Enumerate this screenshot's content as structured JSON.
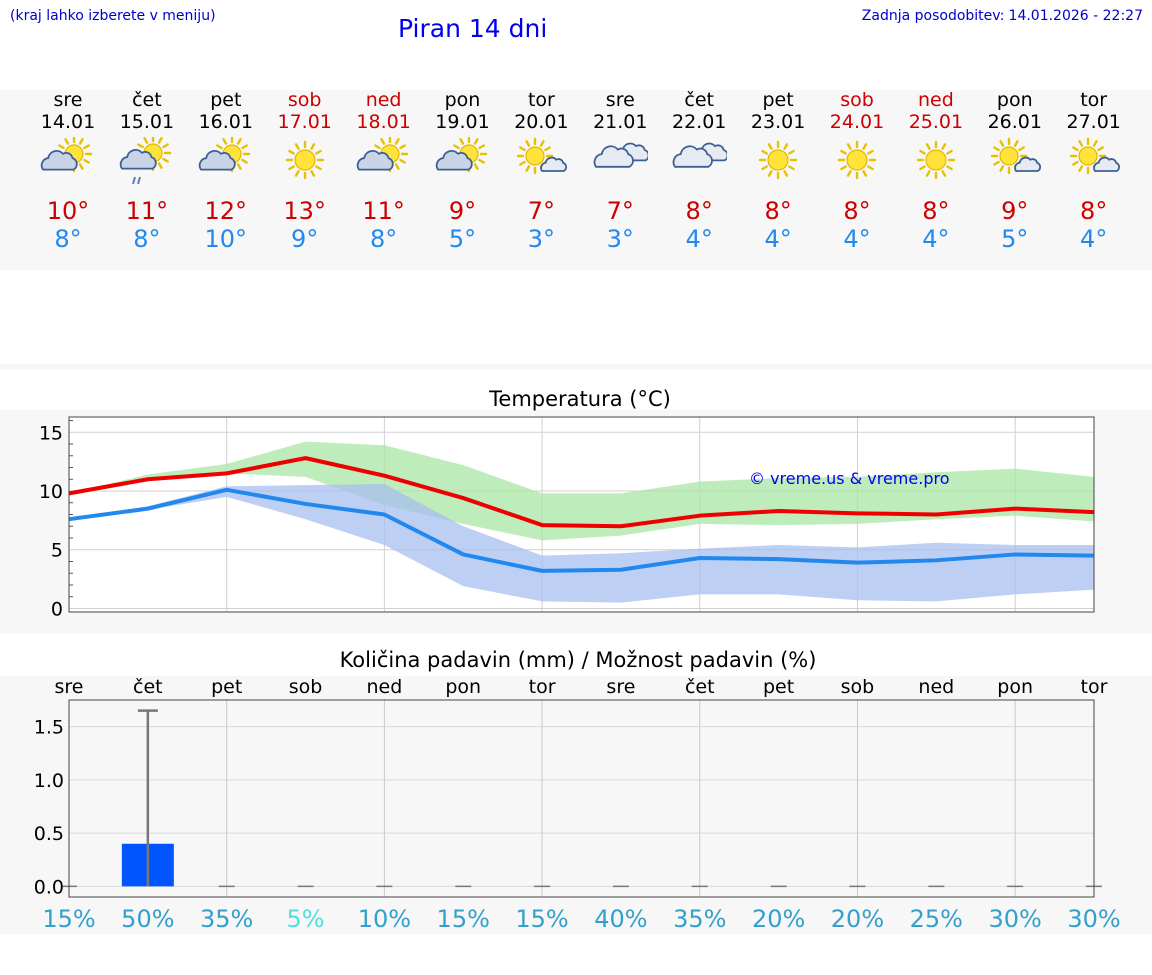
{
  "header": {
    "hint": "(kraj lahko izberete v meniju)",
    "title": "Piran 14 dni",
    "updated_label": "Zadnja posodobitev:",
    "updated_value": "14.01.2026 - 22:27"
  },
  "colors": {
    "weekend": "#cc0000",
    "tmax": "#cc0000",
    "tmin": "#2288ee",
    "max_band": "#a8e6a3",
    "min_band": "#a8bff0",
    "bar": "#0055ff",
    "prob": "#33a0cc",
    "prob_low": "#55dddd"
  },
  "forecast": {
    "days": [
      {
        "name": "sre",
        "date": "14.01",
        "weekend": false,
        "icon": "sun-cloud-icon",
        "tmax": "10°",
        "tmin": "8°"
      },
      {
        "name": "čet",
        "date": "15.01",
        "weekend": false,
        "icon": "sun-cloud-rain-icon",
        "tmax": "11°",
        "tmin": "8°"
      },
      {
        "name": "pet",
        "date": "16.01",
        "weekend": false,
        "icon": "sun-cloud-icon",
        "tmax": "12°",
        "tmin": "10°"
      },
      {
        "name": "sob",
        "date": "17.01",
        "weekend": true,
        "icon": "sun-icon",
        "tmax": "13°",
        "tmin": "9°"
      },
      {
        "name": "ned",
        "date": "18.01",
        "weekend": true,
        "icon": "sun-cloud-icon",
        "tmax": "11°",
        "tmin": "8°"
      },
      {
        "name": "pon",
        "date": "19.01",
        "weekend": false,
        "icon": "sun-cloud-icon",
        "tmax": "9°",
        "tmin": "5°"
      },
      {
        "name": "tor",
        "date": "20.01",
        "weekend": false,
        "icon": "sun-small-cloud-icon",
        "tmax": "7°",
        "tmin": "3°"
      },
      {
        "name": "sre",
        "date": "21.01",
        "weekend": false,
        "icon": "cloud-icon",
        "tmax": "7°",
        "tmin": "3°"
      },
      {
        "name": "čet",
        "date": "22.01",
        "weekend": false,
        "icon": "cloud-icon",
        "tmax": "8°",
        "tmin": "4°"
      },
      {
        "name": "pet",
        "date": "23.01",
        "weekend": false,
        "icon": "sun-icon",
        "tmax": "8°",
        "tmin": "4°"
      },
      {
        "name": "sob",
        "date": "24.01",
        "weekend": true,
        "icon": "sun-icon",
        "tmax": "8°",
        "tmin": "4°"
      },
      {
        "name": "ned",
        "date": "25.01",
        "weekend": true,
        "icon": "sun-icon",
        "tmax": "8°",
        "tmin": "4°"
      },
      {
        "name": "pon",
        "date": "26.01",
        "weekend": false,
        "icon": "sun-small-cloud-icon",
        "tmax": "9°",
        "tmin": "5°"
      },
      {
        "name": "tor",
        "date": "27.01",
        "weekend": false,
        "icon": "sun-small-cloud-icon",
        "tmax": "8°",
        "tmin": "4°"
      }
    ]
  },
  "chart_data": [
    {
      "type": "line",
      "title": "Temperatura (°C)",
      "watermark": "© vreme.us & vreme.pro",
      "ylim": [
        -0.3,
        16.3
      ],
      "yticks": [
        0,
        5,
        10,
        15
      ],
      "ytick_labels": [
        "0",
        "5",
        "10",
        "15"
      ],
      "x": [
        0,
        1,
        2,
        3,
        4,
        5,
        6,
        7,
        8,
        9,
        10,
        11,
        12,
        13
      ],
      "series": [
        {
          "name": "max",
          "values": [
            9.8,
            11.0,
            11.5,
            12.8,
            11.3,
            9.4,
            7.1,
            7.0,
            7.9,
            8.3,
            8.1,
            8.0,
            8.5,
            8.2
          ]
        },
        {
          "name": "min",
          "values": [
            7.6,
            8.5,
            10.1,
            8.9,
            8.0,
            4.6,
            3.2,
            3.3,
            4.3,
            4.2,
            3.9,
            4.1,
            4.6,
            4.5
          ]
        },
        {
          "name": "max_range",
          "low": [
            9.8,
            11.0,
            11.5,
            11.2,
            8.8,
            7.2,
            5.8,
            6.2,
            7.2,
            7.1,
            7.2,
            7.6,
            7.9,
            7.4
          ],
          "high": [
            9.8,
            11.4,
            12.3,
            14.2,
            13.9,
            12.2,
            9.8,
            9.8,
            10.8,
            11.1,
            11.2,
            11.6,
            11.9,
            11.2
          ]
        },
        {
          "name": "min_range",
          "low": [
            7.6,
            8.4,
            9.5,
            7.6,
            5.4,
            1.9,
            0.6,
            0.5,
            1.2,
            1.2,
            0.7,
            0.6,
            1.2,
            1.6
          ],
          "high": [
            7.6,
            8.7,
            10.4,
            10.5,
            10.6,
            7.0,
            4.5,
            4.7,
            5.1,
            5.4,
            5.2,
            5.6,
            5.4,
            5.4
          ]
        }
      ]
    },
    {
      "type": "bar",
      "title": "Količina padavin (mm) / Možnost padavin (%)",
      "categories": [
        "sre",
        "čet",
        "pet",
        "sob",
        "ned",
        "pon",
        "tor",
        "sre",
        "čet",
        "pet",
        "sob",
        "ned",
        "pon",
        "tor"
      ],
      "ylim": [
        -0.1,
        1.75
      ],
      "yticks": [
        0,
        0.5,
        1.0,
        1.5
      ],
      "ytick_labels": [
        "0.0",
        "0.5",
        "1.0",
        "1.5"
      ],
      "values": [
        0,
        0.4,
        0,
        0,
        0,
        0,
        0,
        0,
        0,
        0,
        0,
        0,
        0,
        0
      ],
      "error_max": [
        0,
        1.65,
        0,
        0,
        0,
        0,
        0,
        0,
        0,
        0,
        0,
        0,
        0,
        0
      ],
      "probability_labels": [
        "15%",
        "50%",
        "35%",
        "5%",
        "10%",
        "15%",
        "15%",
        "40%",
        "35%",
        "20%",
        "20%",
        "25%",
        "30%",
        "30%"
      ]
    }
  ]
}
